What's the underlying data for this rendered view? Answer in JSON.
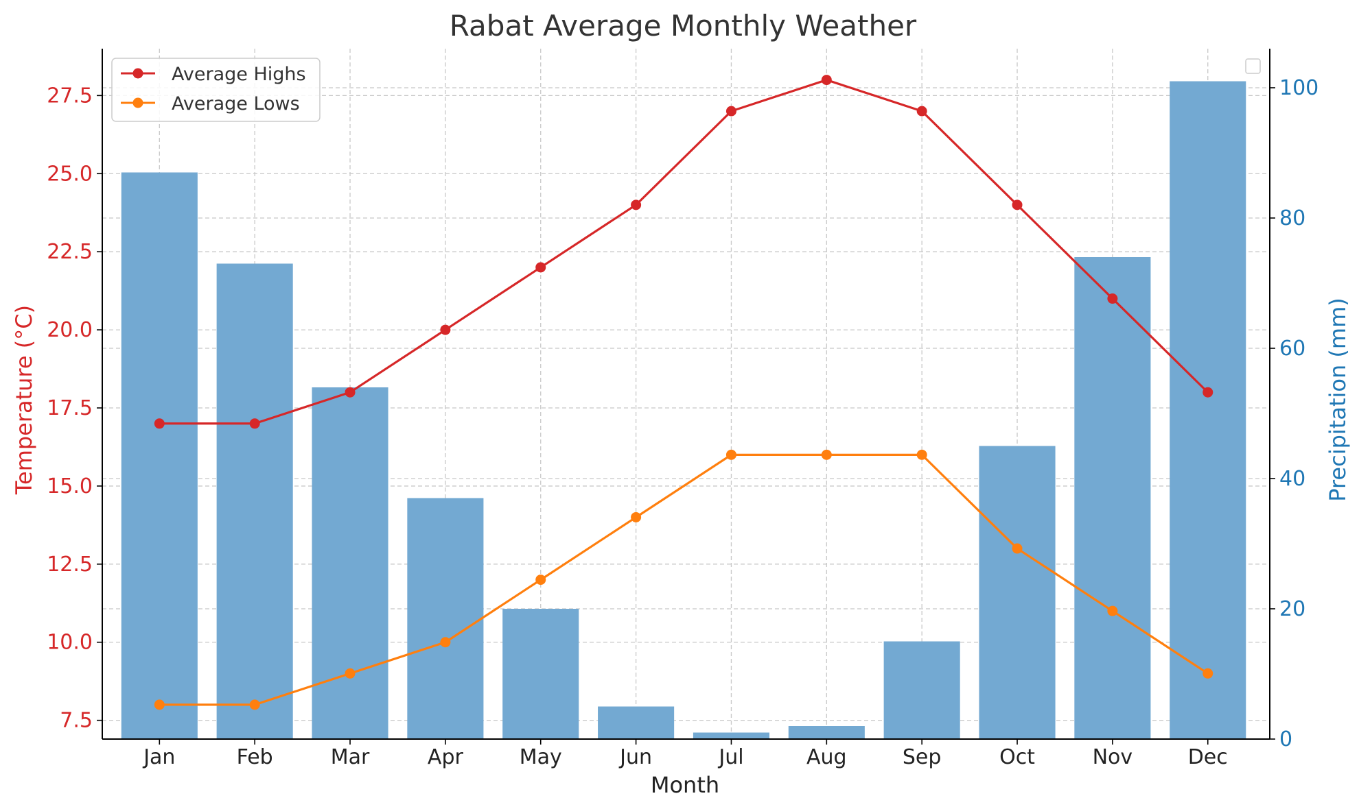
{
  "chart_data": {
    "type": "bar+line",
    "title": "Rabat Average Monthly Weather",
    "xlabel": "Month",
    "ylabel_left": "Temperature (°C)",
    "ylabel_right": "Precipitation (mm)",
    "categories": [
      "Jan",
      "Feb",
      "Mar",
      "Apr",
      "May",
      "Jun",
      "Jul",
      "Aug",
      "Sep",
      "Oct",
      "Nov",
      "Dec"
    ],
    "ylim_left": [
      6.9,
      29.0
    ],
    "ylim_right": [
      0,
      106
    ],
    "yticks_left": [
      "7.5",
      "10.0",
      "12.5",
      "15.0",
      "17.5",
      "20.0",
      "22.5",
      "25.0",
      "27.5"
    ],
    "yticks_right": [
      "0",
      "20",
      "40",
      "60",
      "80",
      "100"
    ],
    "grid": true,
    "legend_position": "top-left",
    "bars": {
      "axis": "right",
      "color": "#73a9d2",
      "values": [
        87,
        73,
        54,
        37,
        20,
        5,
        1,
        2,
        15,
        45,
        74,
        101
      ]
    },
    "series": [
      {
        "name": "Average Highs",
        "axis": "left",
        "color": "#d62728",
        "values": [
          17,
          17,
          18,
          20,
          22,
          24,
          27,
          28,
          27,
          24,
          21,
          18
        ]
      },
      {
        "name": "Average Lows",
        "axis": "left",
        "color": "#ff7f0e",
        "values": [
          8,
          8,
          9,
          10,
          12,
          14,
          16,
          16,
          16,
          13,
          11,
          9
        ]
      }
    ],
    "colors": {
      "left_axis": "#d62728",
      "right_axis": "#1f77b4",
      "grid": "#c8c8c8",
      "text": "#222222"
    }
  }
}
